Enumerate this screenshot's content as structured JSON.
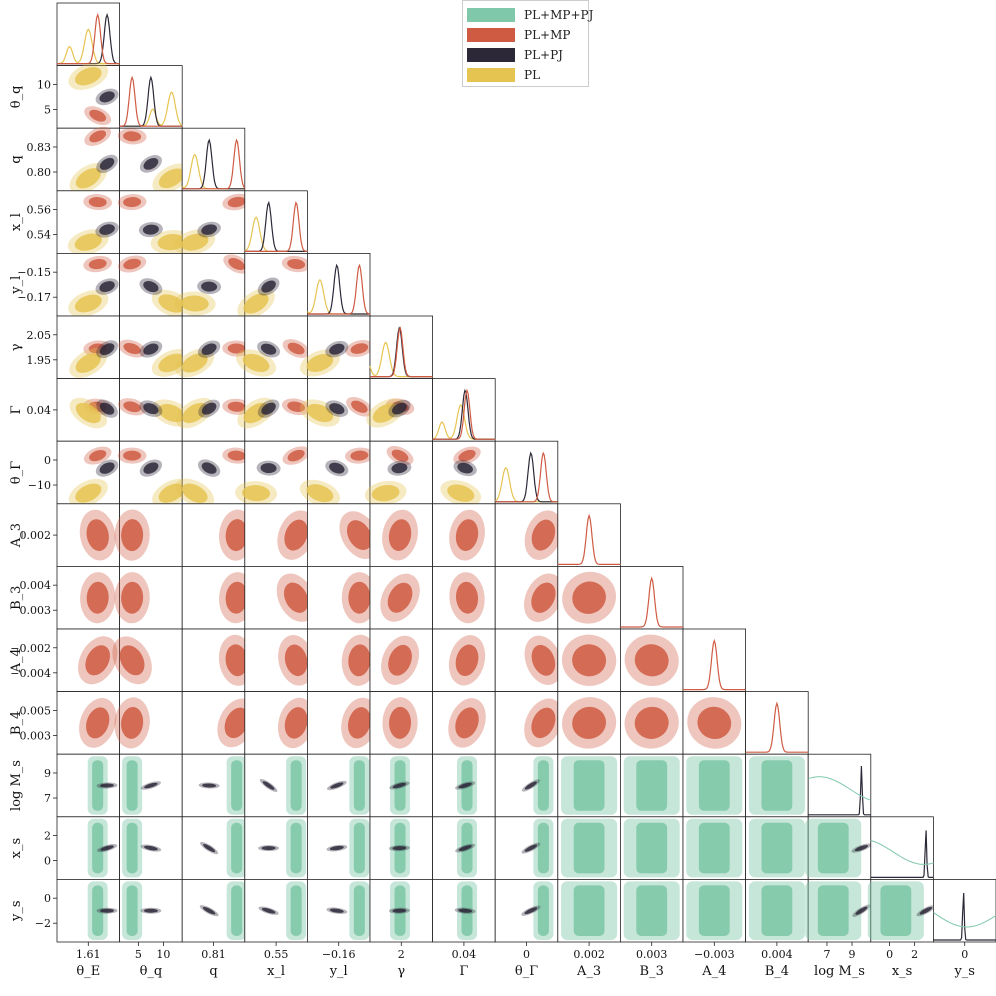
{
  "colors": {
    "PL+MP+PJ": "#7fc8a9",
    "PL+MP": "#cf5b43",
    "PL+PJ": "#2d2838",
    "PL": "#e6c451"
  },
  "chart_data": {
    "type": "corner",
    "series": [
      {
        "name": "PL+MP+PJ",
        "color": "#7fc8a9"
      },
      {
        "name": "PL+MP",
        "color": "#cf5b43"
      },
      {
        "name": "PL+PJ",
        "color": "#2d2838"
      },
      {
        "name": "PL",
        "color": "#e6c451"
      }
    ],
    "parameters": [
      {
        "label": "θ_E",
        "xticks": [
          "1.61"
        ],
        "yticks": []
      },
      {
        "label": "θ_q",
        "xticks": [
          "5",
          "10"
        ],
        "yticks": [
          "10",
          "5"
        ]
      },
      {
        "label": "q",
        "xticks": [
          "0.81"
        ],
        "yticks": [
          "0.83",
          "0.80"
        ]
      },
      {
        "label": "x_l",
        "xticks": [
          "0.55"
        ],
        "yticks": [
          "0.56",
          "0.54"
        ]
      },
      {
        "label": "y_l",
        "xticks": [
          "−0.16"
        ],
        "yticks": [
          "−0.15",
          "−0.17"
        ]
      },
      {
        "label": "γ",
        "xticks": [
          "2"
        ],
        "yticks": [
          "2.05",
          "1.95"
        ]
      },
      {
        "label": "Γ",
        "xticks": [
          "0.04"
        ],
        "yticks": [
          "0.04"
        ]
      },
      {
        "label": "θ_Γ",
        "xticks": [
          "0"
        ],
        "yticks": [
          "0",
          "−10"
        ]
      },
      {
        "label": "A_3",
        "xticks": [
          "0.002"
        ],
        "yticks": [
          "0.002"
        ]
      },
      {
        "label": "B_3",
        "xticks": [
          "0.003"
        ],
        "yticks": [
          "0.004",
          "0.003"
        ]
      },
      {
        "label": "A_4",
        "xticks": [
          "−0.003"
        ],
        "yticks": [
          "−0.002",
          "−0.004"
        ]
      },
      {
        "label": "B_4",
        "xticks": [
          "0.004"
        ],
        "yticks": [
          "0.005",
          "0.003"
        ]
      },
      {
        "label": "log M_s",
        "xticks": [
          "7",
          "9"
        ],
        "yticks": [
          "9",
          "7"
        ]
      },
      {
        "label": "x_s",
        "xticks": [
          "0",
          "2"
        ],
        "yticks": [
          "2",
          "0"
        ]
      },
      {
        "label": "y_s",
        "xticks": [
          "0"
        ],
        "yticks": [
          "0",
          "−2"
        ]
      }
    ],
    "series_parameters": {
      "PL": [
        "θ_E",
        "θ_q",
        "q",
        "x_l",
        "y_l",
        "γ",
        "Γ",
        "θ_Γ"
      ],
      "PL+PJ": [
        "θ_E",
        "θ_q",
        "q",
        "x_l",
        "y_l",
        "γ",
        "Γ",
        "θ_Γ",
        "log M_s",
        "x_s",
        "y_s"
      ],
      "PL+MP": [
        "θ_E",
        "θ_q",
        "q",
        "x_l",
        "y_l",
        "γ",
        "Γ",
        "θ_Γ",
        "A_3",
        "B_3",
        "A_4",
        "B_4"
      ],
      "PL+MP+PJ": [
        "θ_E",
        "θ_q",
        "q",
        "x_l",
        "y_l",
        "γ",
        "Γ",
        "θ_Γ",
        "A_3",
        "B_3",
        "A_4",
        "B_4",
        "log M_s",
        "x_s",
        "y_s"
      ]
    },
    "marginal_peaks": [
      {
        "param": "θ_E",
        "PL": 0.5,
        "PL+PJ": 0.8,
        "PL+MP": 0.65
      },
      {
        "param": "θ_q",
        "PL": 0.83,
        "PL+PJ": 0.5,
        "PL+MP": 0.2
      },
      {
        "param": "q",
        "PL": 0.2,
        "PL+PJ": 0.43,
        "PL+MP": 0.87
      },
      {
        "param": "x_l",
        "PL": 0.18,
        "PL+PJ": 0.38,
        "PL+MP": 0.82
      },
      {
        "param": "y_l",
        "PL": 0.2,
        "PL+PJ": 0.47,
        "PL+MP": 0.83
      },
      {
        "param": "γ",
        "PL": 0.25,
        "PL+PJ": 0.47,
        "PL+MP": 0.48
      },
      {
        "param": "Γ",
        "PL": 0.45,
        "PL+PJ": 0.52,
        "PL+MP": 0.55
      },
      {
        "param": "θ_Γ",
        "PL": 0.17,
        "PL+PJ": 0.57,
        "PL+MP": 0.77
      },
      {
        "param": "A_3",
        "PL+MP": 0.5
      },
      {
        "param": "B_3",
        "PL+MP": 0.5
      },
      {
        "param": "A_4",
        "PL+MP": 0.5
      },
      {
        "param": "B_4",
        "PL+MP": 0.5
      },
      {
        "param": "log M_s",
        "PL+PJ": 0.85
      },
      {
        "param": "x_s",
        "PL+PJ": 0.88
      },
      {
        "param": "y_s",
        "PL+PJ": 0.48
      }
    ],
    "legend_position": "top-center",
    "grid": false
  }
}
